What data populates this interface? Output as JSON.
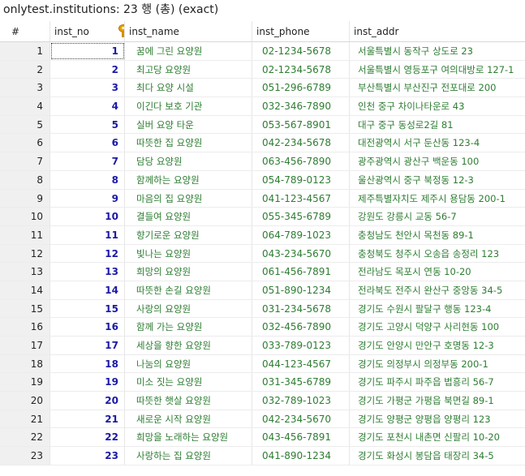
{
  "window": {
    "title": "onlytest.institutions: 23 행 (총) (exact)"
  },
  "columns": [
    "#",
    "inst_no",
    "inst_name",
    "inst_phone",
    "inst_addr"
  ],
  "key_icon": "key-icon",
  "rows": [
    {
      "n": "1",
      "inst_no": "1",
      "inst_name": "꿈에 그린 요양원",
      "inst_phone": "02-1234-5678",
      "inst_addr": "서울특별시 동작구 상도로 23"
    },
    {
      "n": "2",
      "inst_no": "2",
      "inst_name": "최고당 요양원",
      "inst_phone": "02-1234-5678",
      "inst_addr": "서울특별시 영등포구 여의대방로 127-1"
    },
    {
      "n": "3",
      "inst_no": "3",
      "inst_name": "최다 요양 시설",
      "inst_phone": "051-296-6789",
      "inst_addr": "부산특별시 부산진구 전포대로 200"
    },
    {
      "n": "4",
      "inst_no": "4",
      "inst_name": "이긴다 보호 기관",
      "inst_phone": "032-346-7890",
      "inst_addr": "인천 중구 차이나타운로 43"
    },
    {
      "n": "5",
      "inst_no": "5",
      "inst_name": "실버 요양 타운",
      "inst_phone": "053-567-8901",
      "inst_addr": "대구 중구 동성로2길 81"
    },
    {
      "n": "6",
      "inst_no": "6",
      "inst_name": "따뜻한 집 요양원",
      "inst_phone": "042-234-5678",
      "inst_addr": "대전광역시 서구 둔산동 123-4"
    },
    {
      "n": "7",
      "inst_no": "7",
      "inst_name": "담당 요양원",
      "inst_phone": "063-456-7890",
      "inst_addr": "광주광역시 광산구 백운동 100"
    },
    {
      "n": "8",
      "inst_no": "8",
      "inst_name": "함께하는 요양원",
      "inst_phone": "054-789-0123",
      "inst_addr": "울산광역시 중구 북정동 12-3"
    },
    {
      "n": "9",
      "inst_no": "9",
      "inst_name": "마음의 집 요양원",
      "inst_phone": "041-123-4567",
      "inst_addr": "제주특별자치도 제주시 용담동 200-1"
    },
    {
      "n": "10",
      "inst_no": "10",
      "inst_name": "결들여 요양원",
      "inst_phone": "055-345-6789",
      "inst_addr": "강원도 강릉시 교동 56-7"
    },
    {
      "n": "11",
      "inst_no": "11",
      "inst_name": "향기로운 요양원",
      "inst_phone": "064-789-1023",
      "inst_addr": "충청남도 천안시 목천동 89-1"
    },
    {
      "n": "12",
      "inst_no": "12",
      "inst_name": "빛나는 요양원",
      "inst_phone": "043-234-5670",
      "inst_addr": "충청북도 청주시 오송읍 송정리 123"
    },
    {
      "n": "13",
      "inst_no": "13",
      "inst_name": "희망의 요양원",
      "inst_phone": "061-456-7891",
      "inst_addr": "전라남도 목포시 연동 10-20"
    },
    {
      "n": "14",
      "inst_no": "14",
      "inst_name": "따뜻한 손길 요양원",
      "inst_phone": "051-890-1234",
      "inst_addr": "전라북도 전주시 완산구 중앙동 34-5"
    },
    {
      "n": "15",
      "inst_no": "15",
      "inst_name": "사랑의 요양원",
      "inst_phone": "031-234-5678",
      "inst_addr": "경기도 수원시 팔달구 행동 123-4"
    },
    {
      "n": "16",
      "inst_no": "16",
      "inst_name": "함께 가는 요양원",
      "inst_phone": "032-456-7890",
      "inst_addr": "경기도 고양시 덕양구 사리현동 100"
    },
    {
      "n": "17",
      "inst_no": "17",
      "inst_name": "세상을 향한 요양원",
      "inst_phone": "033-789-0123",
      "inst_addr": "경기도 안양시 만안구 호명동 12-3"
    },
    {
      "n": "18",
      "inst_no": "18",
      "inst_name": "나눔의 요양원",
      "inst_phone": "044-123-4567",
      "inst_addr": "경기도 의정부시 의정부동 200-1"
    },
    {
      "n": "19",
      "inst_no": "19",
      "inst_name": "미소 짓는 요양원",
      "inst_phone": "031-345-6789",
      "inst_addr": "경기도 파주시 파주읍 법흥리 56-7"
    },
    {
      "n": "20",
      "inst_no": "20",
      "inst_name": "따뜻한 햇살 요양원",
      "inst_phone": "032-789-1023",
      "inst_addr": "경기도 가평군 가평읍 북면길 89-1"
    },
    {
      "n": "21",
      "inst_no": "21",
      "inst_name": "새로운 시작 요양원",
      "inst_phone": "042-234-5670",
      "inst_addr": "경기도 양평군 양평읍 양평리 123"
    },
    {
      "n": "22",
      "inst_no": "22",
      "inst_name": "희망을 노래하는 요양원",
      "inst_phone": "043-456-7891",
      "inst_addr": "경기도 포천시 내촌면 신팔리 10-20"
    },
    {
      "n": "23",
      "inst_no": "23",
      "inst_name": "사랑하는 집 요양원",
      "inst_phone": "041-890-1234",
      "inst_addr": "경기도 화성시 봉담읍 태장리 34-5"
    }
  ]
}
